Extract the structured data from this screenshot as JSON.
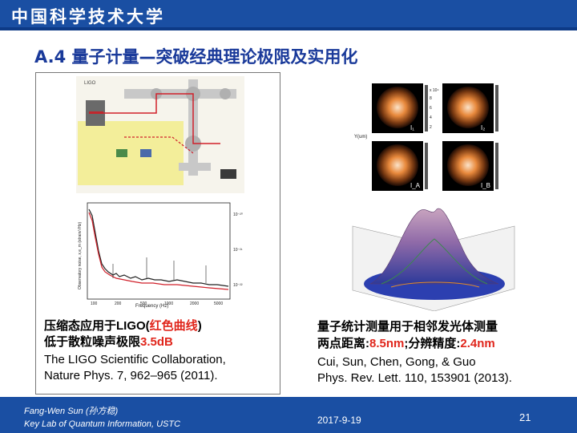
{
  "header": {
    "logo_text": "中国科学技术大学"
  },
  "slide": {
    "title": "A.4 量子计量—突破经典理论极限及实用化"
  },
  "left_panel": {
    "caption_line1_prefix": "压缩态应用于LIGO(",
    "caption_line1_red": "红色曲线",
    "caption_line1_suffix": ")",
    "caption_line2_prefix": "低于散粒噪声极限",
    "caption_line2_red": "3.5dB",
    "caption_line3": "The LIGO Scientific Collaboration,",
    "caption_line4": "Nature Phys. 7, 962–965 (2011).",
    "fig_top_label_left": "LIGO",
    "fig_plot_xlabel": "Frequency (Hz)",
    "fig_plot_ylabel": "Observatory noise, x,e_m (strain/√Hz)",
    "fig_plot_xticks": [
      "100",
      "200",
      "500",
      "1000",
      "2000",
      "5000"
    ],
    "fig_plot_yticks": [
      "10⁻²⁰",
      "10⁻²¹",
      "10⁻²²"
    ]
  },
  "right_panel": {
    "caption_line1": "量子统计测量用于相邻发光体测量",
    "caption_line2_prefix": "两点距离:",
    "caption_line2_red1": "8.5nm",
    "caption_line2_mid": ";分辨精度:",
    "caption_line2_red2": "2.4nm",
    "caption_line3": "Cui, Sun, Chen, Gong, & Guo",
    "caption_line4": "Phys. Rev. Lett. 110, 153901 (2013).",
    "map_labels": [
      "I₁",
      "I₂",
      "I_A",
      "I_B"
    ],
    "axis_label": "Y(um)",
    "scale_labels": [
      "x 10⁴",
      "8",
      "6",
      "4",
      "2"
    ]
  },
  "footer": {
    "author_line1": "Fang-Wen Sun (孙方稳)",
    "author_line2": "Key Lab of Quantum Information, USTC",
    "date": "2017-9-19",
    "page_number": "21"
  },
  "colors": {
    "brand_blue": "#1a4fa3",
    "title_blue": "#1a3a9a",
    "highlight_red": "#e0261c"
  }
}
